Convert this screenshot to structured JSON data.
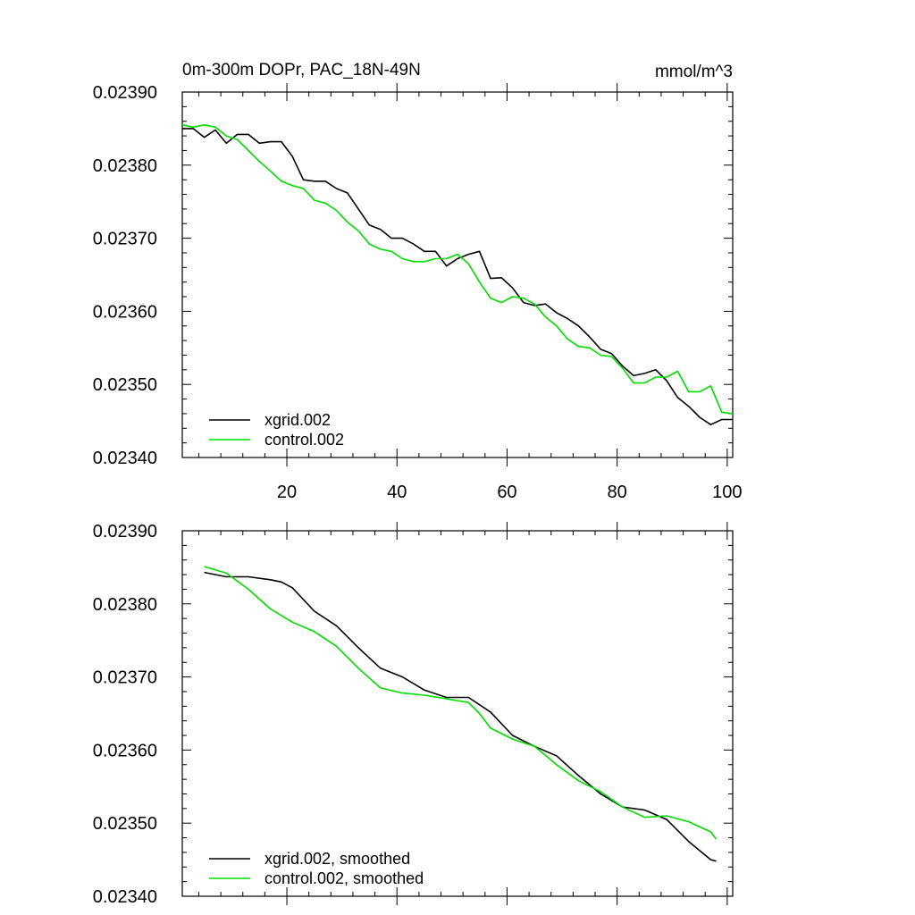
{
  "chart_data": [
    {
      "type": "line",
      "title": "0m-300m DOPr, PAC_18N-49N",
      "units": "mmol/m^3",
      "xlim": [
        1,
        101
      ],
      "ylim": [
        0.0234,
        0.0239
      ],
      "x_ticks": [
        20,
        40,
        60,
        80,
        100
      ],
      "x_tick_labels": [
        "20",
        "40",
        "60",
        "80",
        "100"
      ],
      "y_ticks": [
        0.0234,
        0.0235,
        0.0236,
        0.0237,
        0.0238,
        0.0239
      ],
      "y_tick_labels": [
        "0.02340",
        "0.02350",
        "0.02360",
        "0.02370",
        "0.02380",
        "0.02390"
      ],
      "grid": false,
      "legend_position": "bottom-left",
      "series": [
        {
          "name": "xgrid.002",
          "color": "#000000",
          "x": [
            1,
            3,
            5,
            7,
            9,
            11,
            13,
            15,
            17,
            19,
            21,
            23,
            25,
            27,
            29,
            31,
            33,
            35,
            37,
            39,
            41,
            43,
            45,
            47,
            49,
            51,
            53,
            55,
            57,
            59,
            61,
            63,
            65,
            67,
            69,
            71,
            73,
            75,
            77,
            79,
            81,
            83,
            85,
            87,
            89,
            91,
            93,
            95,
            97,
            99,
            101
          ],
          "y": [
            0.02385,
            0.02385,
            0.023838,
            0.023848,
            0.02383,
            0.023842,
            0.023842,
            0.02383,
            0.023832,
            0.023832,
            0.023812,
            0.02378,
            0.023778,
            0.023778,
            0.023768,
            0.023762,
            0.02374,
            0.023718,
            0.023712,
            0.0237,
            0.0237,
            0.023692,
            0.023682,
            0.023682,
            0.023662,
            0.023672,
            0.023678,
            0.023682,
            0.023645,
            0.023646,
            0.023632,
            0.023612,
            0.023608,
            0.02361,
            0.023598,
            0.02359,
            0.02358,
            0.023565,
            0.023548,
            0.023542,
            0.023525,
            0.023512,
            0.023515,
            0.02352,
            0.023505,
            0.023482,
            0.02347,
            0.023455,
            0.023445,
            0.023452,
            0.023452
          ]
        },
        {
          "name": "control.002",
          "color": "#00dd00",
          "x": [
            1,
            3,
            5,
            7,
            9,
            11,
            13,
            15,
            17,
            19,
            21,
            23,
            25,
            27,
            29,
            31,
            33,
            35,
            37,
            39,
            41,
            43,
            45,
            47,
            49,
            51,
            53,
            55,
            57,
            59,
            61,
            63,
            65,
            67,
            69,
            71,
            73,
            75,
            77,
            79,
            81,
            83,
            85,
            87,
            89,
            91,
            93,
            95,
            97,
            99,
            101
          ],
          "y": [
            0.023855,
            0.023852,
            0.023855,
            0.023852,
            0.02384,
            0.023835,
            0.02382,
            0.023805,
            0.023792,
            0.023778,
            0.023772,
            0.023768,
            0.023752,
            0.023748,
            0.023738,
            0.023722,
            0.02371,
            0.023692,
            0.023685,
            0.023682,
            0.023672,
            0.023668,
            0.023668,
            0.023672,
            0.023672,
            0.023678,
            0.023665,
            0.02364,
            0.023618,
            0.023612,
            0.02362,
            0.023618,
            0.02361,
            0.023592,
            0.02358,
            0.023562,
            0.023552,
            0.02355,
            0.02354,
            0.023538,
            0.023522,
            0.023502,
            0.023502,
            0.02351,
            0.02351,
            0.023518,
            0.02349,
            0.02349,
            0.023498,
            0.023462,
            0.02346
          ]
        }
      ]
    },
    {
      "type": "line",
      "xlim": [
        1,
        101
      ],
      "ylim": [
        0.0234,
        0.0239
      ],
      "y_ticks": [
        0.0234,
        0.0235,
        0.0236,
        0.0237,
        0.0238,
        0.0239
      ],
      "y_tick_labels": [
        "0.02340",
        "0.02350",
        "0.02360",
        "0.02370",
        "0.02380",
        "0.02390"
      ],
      "grid": false,
      "legend_position": "bottom-left",
      "series": [
        {
          "name": "xgrid.002, smoothed",
          "color": "#000000",
          "x": [
            5,
            9,
            13,
            17,
            19,
            21,
            25,
            29,
            33,
            37,
            41,
            45,
            49,
            53,
            57,
            61,
            65,
            69,
            73,
            77,
            81,
            85,
            89,
            93,
            97,
            98
          ],
          "y": [
            0.023843,
            0.023837,
            0.023837,
            0.023833,
            0.02383,
            0.023822,
            0.02379,
            0.02377,
            0.02374,
            0.023712,
            0.0237,
            0.023682,
            0.023672,
            0.023672,
            0.023652,
            0.02362,
            0.023605,
            0.023592,
            0.023565,
            0.02354,
            0.023522,
            0.023518,
            0.023505,
            0.023475,
            0.02345,
            0.023448
          ]
        },
        {
          "name": "control.002, smoothed",
          "color": "#00dd00",
          "x": [
            5,
            9,
            13,
            17,
            21,
            25,
            29,
            33,
            37,
            41,
            45,
            49,
            53,
            55,
            57,
            61,
            65,
            69,
            73,
            77,
            81,
            85,
            89,
            93,
            97,
            98
          ],
          "y": [
            0.023851,
            0.023842,
            0.02382,
            0.023793,
            0.023775,
            0.023762,
            0.023742,
            0.023712,
            0.023685,
            0.023678,
            0.023675,
            0.02367,
            0.023665,
            0.02365,
            0.02363,
            0.023615,
            0.023605,
            0.02358,
            0.023558,
            0.023543,
            0.023522,
            0.023508,
            0.02351,
            0.023502,
            0.023488,
            0.023478
          ]
        }
      ]
    }
  ]
}
